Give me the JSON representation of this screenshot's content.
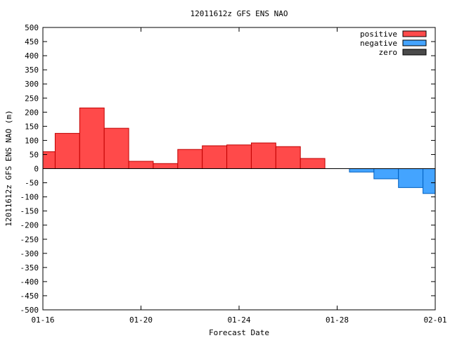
{
  "chart_data": {
    "type": "bar",
    "title": "12011612z GFS ENS NAO",
    "xlabel": "Forecast Date",
    "ylabel": "12011612z GFS ENS NAO (m)",
    "ylim": [
      -500,
      500
    ],
    "y_ticks": [
      -500,
      -450,
      -400,
      -350,
      -300,
      -250,
      -200,
      -150,
      -100,
      -50,
      0,
      50,
      100,
      150,
      200,
      250,
      300,
      350,
      400,
      450,
      500
    ],
    "x_range": [
      "2012-01-16",
      "2012-02-01"
    ],
    "x_ticks": [
      {
        "date": "2012-01-16",
        "label": "01-16"
      },
      {
        "date": "2012-01-20",
        "label": "01-20"
      },
      {
        "date": "2012-01-24",
        "label": "01-24"
      },
      {
        "date": "2012-01-28",
        "label": "01-28"
      },
      {
        "date": "2012-02-01",
        "label": "02-01"
      }
    ],
    "grid": false,
    "legend_position": "top-right",
    "legend": [
      {
        "label": "positive",
        "color": "#ff4a4a"
      },
      {
        "label": "negative",
        "color": "#44a4ff"
      },
      {
        "label": "zero",
        "color": "#4a4a4a"
      }
    ],
    "bars": [
      {
        "start": "2012-01-16",
        "end": "2012-01-16T12:00",
        "value": 60
      },
      {
        "start": "2012-01-16T12:00",
        "end": "2012-01-17T12:00",
        "value": 125
      },
      {
        "start": "2012-01-17T12:00",
        "end": "2012-01-18T12:00",
        "value": 215
      },
      {
        "start": "2012-01-18T12:00",
        "end": "2012-01-19T12:00",
        "value": 143
      },
      {
        "start": "2012-01-19T12:00",
        "end": "2012-01-20T12:00",
        "value": 26
      },
      {
        "start": "2012-01-20T12:00",
        "end": "2012-01-21T12:00",
        "value": 18
      },
      {
        "start": "2012-01-21T12:00",
        "end": "2012-01-22T12:00",
        "value": 68
      },
      {
        "start": "2012-01-22T12:00",
        "end": "2012-01-23T12:00",
        "value": 81
      },
      {
        "start": "2012-01-23T12:00",
        "end": "2012-01-24T12:00",
        "value": 84
      },
      {
        "start": "2012-01-24T12:00",
        "end": "2012-01-25T12:00",
        "value": 91
      },
      {
        "start": "2012-01-25T12:00",
        "end": "2012-01-26T12:00",
        "value": 78
      },
      {
        "start": "2012-01-26T12:00",
        "end": "2012-01-27T12:00",
        "value": 36
      },
      {
        "start": "2012-01-28T12:00",
        "end": "2012-01-29T12:00",
        "value": -12
      },
      {
        "start": "2012-01-29T12:00",
        "end": "2012-01-30T12:00",
        "value": -36
      },
      {
        "start": "2012-01-30T12:00",
        "end": "2012-01-31T12:00",
        "value": -67
      },
      {
        "start": "2012-01-31T12:00",
        "end": "2012-02-01",
        "value": -88
      }
    ]
  }
}
